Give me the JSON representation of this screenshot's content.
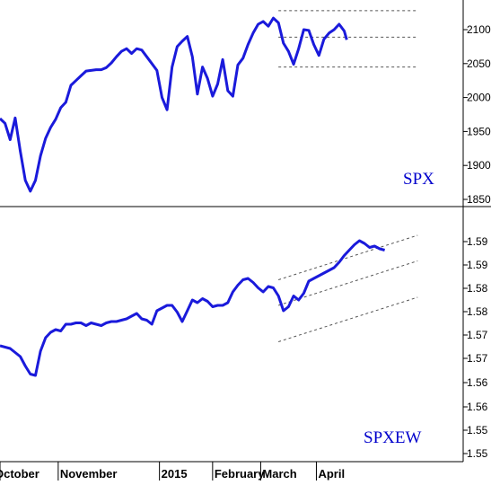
{
  "colors": {
    "series": "#1a1adb",
    "axis": "#000000",
    "channel": "#555555",
    "label": "#0000cc"
  },
  "chart_data": [
    {
      "type": "line",
      "series": [
        {
          "name": "SPX"
        }
      ],
      "label_text": "SPX",
      "y_ticks": [
        1850,
        1900,
        1950,
        2000,
        2050,
        2100
      ],
      "y_tick_labels": [
        "1850",
        "1900",
        "1950",
        "2000",
        "2050",
        "2100"
      ],
      "ylim": [
        1840,
        2135
      ],
      "x_range": [
        0,
        183
      ],
      "x_ticks": [
        {
          "index": 0,
          "label": "October"
        },
        {
          "index": 23,
          "label": "November"
        },
        {
          "index": 63,
          "label": "2015"
        },
        {
          "index": 84,
          "label": "February"
        },
        {
          "index": 103,
          "label": "March"
        },
        {
          "index": 125,
          "label": "April"
        }
      ],
      "points": [
        [
          0,
          1969
        ],
        [
          2,
          1962
        ],
        [
          4,
          1938
        ],
        [
          6,
          1970
        ],
        [
          8,
          1921
        ],
        [
          10,
          1878
        ],
        [
          12,
          1862
        ],
        [
          14,
          1878
        ],
        [
          16,
          1914
        ],
        [
          18,
          1940
        ],
        [
          20,
          1956
        ],
        [
          22,
          1968
        ],
        [
          24,
          1985
        ],
        [
          26,
          1993
        ],
        [
          28,
          2018
        ],
        [
          30,
          2025
        ],
        [
          32,
          2032
        ],
        [
          34,
          2039
        ],
        [
          36,
          2040
        ],
        [
          38,
          2041
        ],
        [
          40,
          2041
        ],
        [
          42,
          2044
        ],
        [
          44,
          2051
        ],
        [
          46,
          2060
        ],
        [
          48,
          2068
        ],
        [
          50,
          2072
        ],
        [
          52,
          2065
        ],
        [
          54,
          2072
        ],
        [
          56,
          2070
        ],
        [
          58,
          2060
        ],
        [
          60,
          2050
        ],
        [
          62,
          2040
        ],
        [
          64,
          2000
        ],
        [
          66,
          1982
        ],
        [
          68,
          2045
        ],
        [
          70,
          2075
        ],
        [
          72,
          2083
        ],
        [
          74,
          2090
        ],
        [
          76,
          2060
        ],
        [
          78,
          2005
        ],
        [
          80,
          2045
        ],
        [
          82,
          2028
        ],
        [
          84,
          2002
        ],
        [
          86,
          2020
        ],
        [
          88,
          2056
        ],
        [
          90,
          2010
        ],
        [
          92,
          2002
        ],
        [
          94,
          2048
        ],
        [
          96,
          2058
        ],
        [
          98,
          2078
        ],
        [
          100,
          2095
        ],
        [
          102,
          2108
        ],
        [
          104,
          2112
        ],
        [
          106,
          2105
        ],
        [
          108,
          2117
        ],
        [
          110,
          2110
        ],
        [
          112,
          2080
        ],
        [
          114,
          2068
        ],
        [
          116,
          2049
        ],
        [
          118,
          2072
        ],
        [
          120,
          2100
        ],
        [
          122,
          2099
        ],
        [
          124,
          2078
        ],
        [
          126,
          2062
        ],
        [
          128,
          2086
        ],
        [
          130,
          2095
        ],
        [
          132,
          2100
        ],
        [
          134,
          2108
        ],
        [
          136,
          2098
        ],
        [
          137,
          2085
        ]
      ],
      "channel_lines": [
        {
          "from": [
            110,
            2128
          ],
          "to": [
            165,
            2128
          ]
        },
        {
          "from": [
            110,
            2089
          ],
          "to": [
            165,
            2089
          ]
        },
        {
          "from": [
            110,
            2045
          ],
          "to": [
            165,
            2045
          ]
        }
      ]
    },
    {
      "type": "line",
      "series": [
        {
          "name": "SPXEW"
        }
      ],
      "label_text": "SPXEW",
      "y_tick_labels": [
        "1.55",
        "1.55",
        "1.56",
        "1.56",
        "1.57",
        "1.57",
        "1.58",
        "1.58",
        "1.59",
        "1.59"
      ],
      "x_range": [
        0,
        183
      ],
      "points": [
        [
          0,
          0.8
        ],
        [
          4,
          0.78
        ],
        [
          8,
          0.72
        ],
        [
          10,
          0.65
        ],
        [
          12,
          0.59
        ],
        [
          14,
          0.58
        ],
        [
          16,
          0.76
        ],
        [
          18,
          0.86
        ],
        [
          20,
          0.9
        ],
        [
          22,
          0.92
        ],
        [
          24,
          0.91
        ],
        [
          26,
          0.96
        ],
        [
          28,
          0.96
        ],
        [
          30,
          0.97
        ],
        [
          32,
          0.97
        ],
        [
          34,
          0.95
        ],
        [
          36,
          0.97
        ],
        [
          38,
          0.96
        ],
        [
          40,
          0.95
        ],
        [
          42,
          0.97
        ],
        [
          44,
          0.98
        ],
        [
          46,
          0.98
        ],
        [
          48,
          0.99
        ],
        [
          50,
          1.0
        ],
        [
          52,
          1.02
        ],
        [
          54,
          1.04
        ],
        [
          56,
          1.0
        ],
        [
          58,
          0.99
        ],
        [
          60,
          0.96
        ],
        [
          62,
          1.06
        ],
        [
          64,
          1.08
        ],
        [
          66,
          1.1
        ],
        [
          68,
          1.1
        ],
        [
          70,
          1.05
        ],
        [
          72,
          0.98
        ],
        [
          74,
          1.06
        ],
        [
          76,
          1.14
        ],
        [
          78,
          1.12
        ],
        [
          80,
          1.15
        ],
        [
          82,
          1.13
        ],
        [
          84,
          1.09
        ],
        [
          86,
          1.1
        ],
        [
          88,
          1.1
        ],
        [
          90,
          1.12
        ],
        [
          92,
          1.2
        ],
        [
          94,
          1.25
        ],
        [
          96,
          1.29
        ],
        [
          98,
          1.3
        ],
        [
          100,
          1.27
        ],
        [
          102,
          1.23
        ],
        [
          104,
          1.2
        ],
        [
          106,
          1.24
        ],
        [
          108,
          1.23
        ],
        [
          110,
          1.17
        ],
        [
          112,
          1.06
        ],
        [
          114,
          1.09
        ],
        [
          116,
          1.17
        ],
        [
          118,
          1.14
        ],
        [
          120,
          1.19
        ],
        [
          122,
          1.28
        ],
        [
          124,
          1.3
        ],
        [
          126,
          1.32
        ],
        [
          128,
          1.34
        ],
        [
          130,
          1.36
        ],
        [
          132,
          1.38
        ],
        [
          134,
          1.42
        ],
        [
          136,
          1.47
        ],
        [
          138,
          1.51
        ],
        [
          140,
          1.55
        ],
        [
          142,
          1.58
        ],
        [
          144,
          1.56
        ],
        [
          146,
          1.53
        ],
        [
          148,
          1.54
        ],
        [
          150,
          1.52
        ],
        [
          152,
          1.51
        ]
      ],
      "channel_lines": [
        {
          "from": [
            110,
            1.29
          ],
          "to": [
            165,
            1.62
          ]
        },
        {
          "from": [
            110,
            1.1
          ],
          "to": [
            165,
            1.43
          ]
        },
        {
          "from": [
            110,
            0.83
          ],
          "to": [
            165,
            1.16
          ]
        }
      ]
    }
  ]
}
